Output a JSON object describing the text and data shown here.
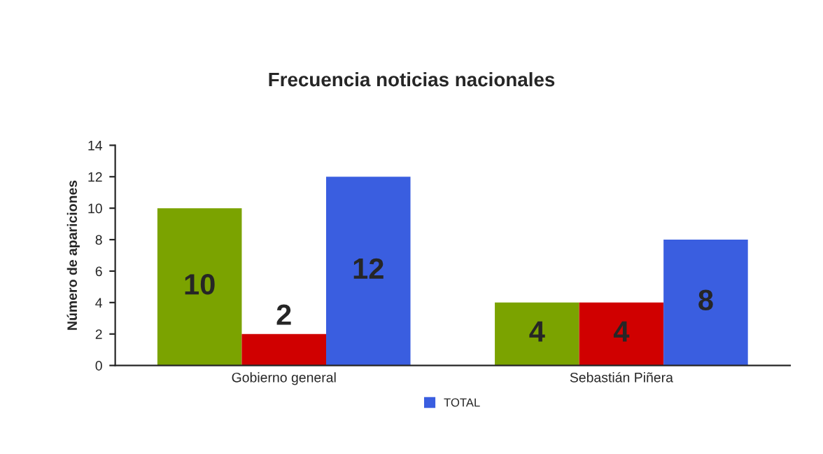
{
  "chart_data": {
    "type": "bar",
    "title": "Frecuencia noticias nacionales",
    "ylabel": "Número de apariciones",
    "categories": [
      "Gobierno general",
      "Sebastián Piñera"
    ],
    "series": [
      {
        "color": "#7ba300",
        "values": [
          10,
          4
        ]
      },
      {
        "color": "#d00000",
        "values": [
          2,
          4
        ]
      },
      {
        "name": "TOTAL",
        "color": "#3a5ee0",
        "values": [
          12,
          8
        ]
      }
    ],
    "ylim": [
      0,
      14
    ],
    "yticks": [
      0,
      2,
      4,
      6,
      8,
      10,
      12,
      14
    ],
    "grid": false,
    "legend": "bottom",
    "data_labels": true
  }
}
